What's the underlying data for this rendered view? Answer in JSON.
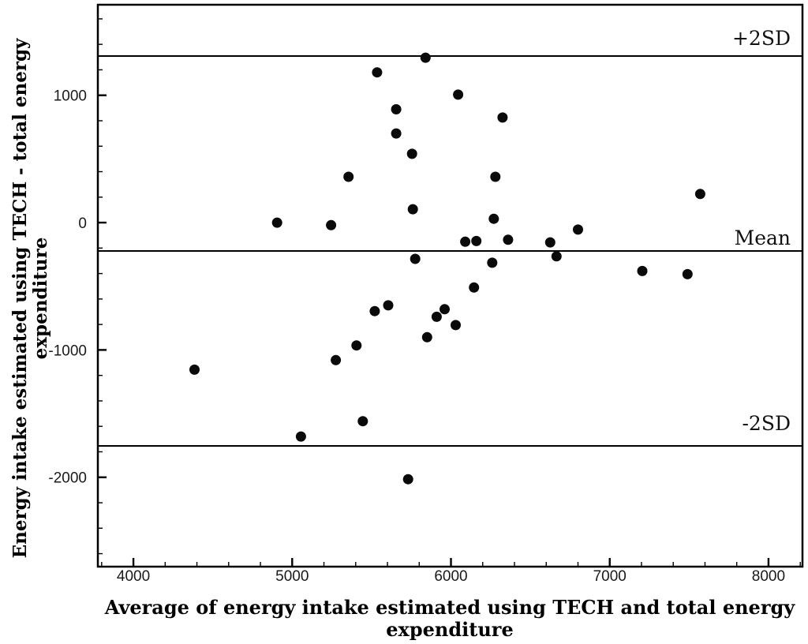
{
  "figure": {
    "background_color": "#ffffff",
    "foreground_color": "#000000",
    "point_color": "#0a0a0a"
  },
  "chart_data": {
    "type": "scatter",
    "title": "",
    "xlabel_line1": "Average of energy intake estimated using TECH and total energy",
    "xlabel_line2": "expenditure",
    "ylabel_line1": "Energy intake estimated using TECH - total energy",
    "ylabel_line2": "expenditure",
    "xlim": [
      3776,
      8214
    ],
    "ylim": [
      -2702,
      1711
    ],
    "x_major_ticks": [
      4000,
      5000,
      6000,
      7000,
      8000
    ],
    "y_major_ticks": [
      1000,
      0,
      -1000,
      -2000
    ],
    "minor_tick_step": 200,
    "grid": false,
    "legend": "none",
    "reference_lines": [
      {
        "label": "+2SD",
        "value": 1308
      },
      {
        "label": "Mean",
        "value": -223
      },
      {
        "label": "-2SD",
        "value": -1754
      }
    ],
    "mean_difference": -223,
    "sd_of_difference": 765,
    "points": [
      [
        5840,
        1295
      ],
      [
        5535,
        1180
      ],
      [
        6045,
        1005
      ],
      [
        5655,
        890
      ],
      [
        6325,
        825
      ],
      [
        5655,
        700
      ],
      [
        5755,
        540
      ],
      [
        5355,
        360
      ],
      [
        6280,
        360
      ],
      [
        5760,
        105
      ],
      [
        4905,
        0
      ],
      [
        5245,
        -20
      ],
      [
        6270,
        30
      ],
      [
        6090,
        -150
      ],
      [
        6160,
        -145
      ],
      [
        6360,
        -135
      ],
      [
        6625,
        -155
      ],
      [
        6665,
        -265
      ],
      [
        5775,
        -285
      ],
      [
        6260,
        -315
      ],
      [
        6145,
        -510
      ],
      [
        5605,
        -650
      ],
      [
        5520,
        -695
      ],
      [
        5960,
        -680
      ],
      [
        5910,
        -740
      ],
      [
        6030,
        -805
      ],
      [
        5850,
        -900
      ],
      [
        5405,
        -965
      ],
      [
        5275,
        -1080
      ],
      [
        4385,
        -1155
      ],
      [
        5445,
        -1560
      ],
      [
        5055,
        -1680
      ],
      [
        5730,
        -2015
      ],
      [
        7570,
        225
      ],
      [
        6800,
        -55
      ],
      [
        7205,
        -380
      ],
      [
        7490,
        -405
      ]
    ]
  }
}
